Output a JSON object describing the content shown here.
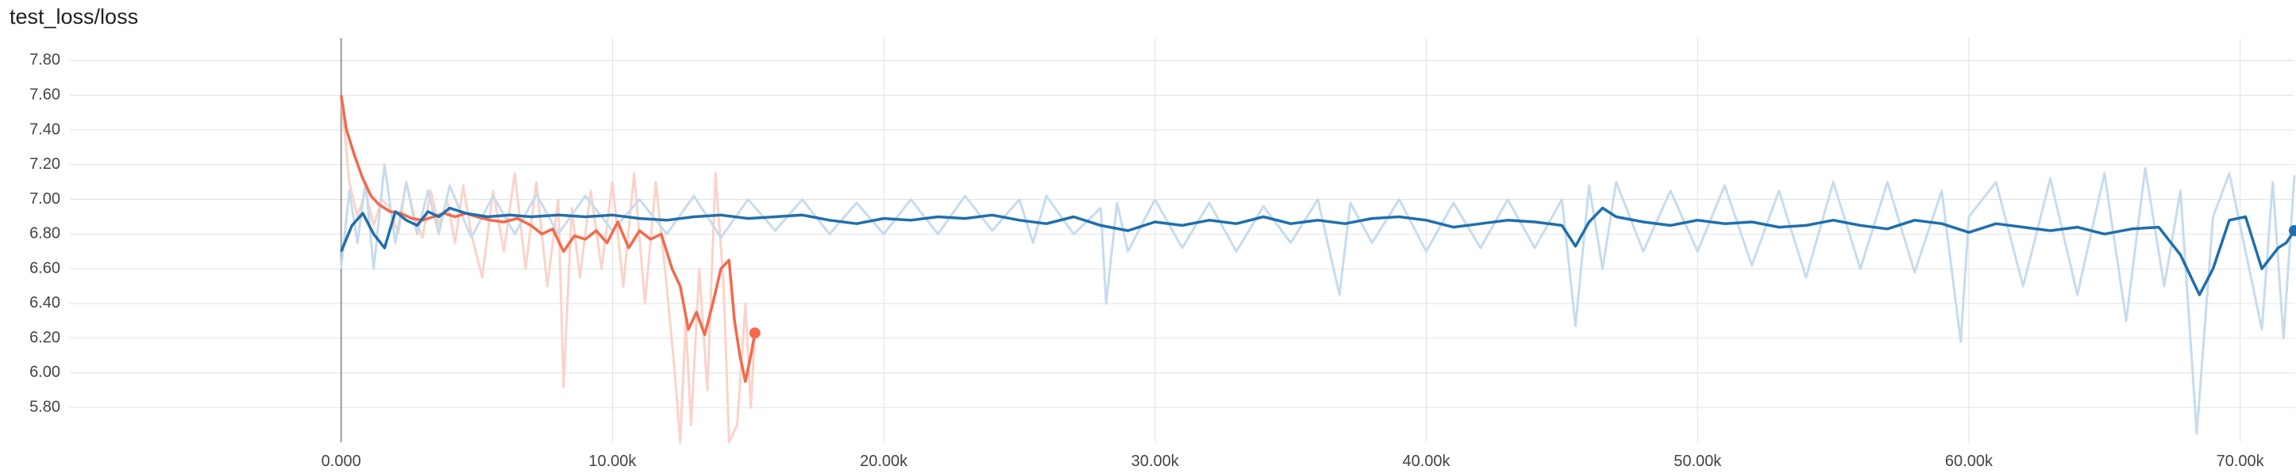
{
  "title": "test_loss/loss",
  "colors": {
    "run_orange": "#f4694b",
    "run_orange_raw": "#fbd3c9",
    "run_blue": "#1f6fad",
    "run_blue_raw": "#c6dcee",
    "grid": "#e2e2e2",
    "zero_line": "#9a9a9a"
  },
  "chart_data": {
    "type": "line",
    "title": "test_loss/loss",
    "xlabel": "",
    "ylabel": "",
    "xlim": [
      -10000,
      72000
    ],
    "ylim": [
      5.6,
      7.93
    ],
    "x_ticks": [
      {
        "value": 0,
        "label": "0.000"
      },
      {
        "value": 10000,
        "label": "10.00k"
      },
      {
        "value": 20000,
        "label": "20.00k"
      },
      {
        "value": 30000,
        "label": "30.00k"
      },
      {
        "value": 40000,
        "label": "40.00k"
      },
      {
        "value": 50000,
        "label": "50.00k"
      },
      {
        "value": 60000,
        "label": "60.00k"
      },
      {
        "value": 70000,
        "label": "70.00k"
      }
    ],
    "y_ticks": [
      {
        "value": 5.8,
        "label": "5.80"
      },
      {
        "value": 6.0,
        "label": "6.00"
      },
      {
        "value": 6.2,
        "label": "6.20"
      },
      {
        "value": 6.4,
        "label": "6.40"
      },
      {
        "value": 6.6,
        "label": "6.60"
      },
      {
        "value": 6.8,
        "label": "6.80"
      },
      {
        "value": 7.0,
        "label": "7.00"
      },
      {
        "value": 7.2,
        "label": "7.20"
      },
      {
        "value": 7.4,
        "label": "7.40"
      },
      {
        "value": 7.6,
        "label": "7.60"
      },
      {
        "value": 7.8,
        "label": "7.80"
      }
    ],
    "grid": true,
    "series": [
      {
        "color_key": "run_orange",
        "smoothed": [
          [
            0,
            7.6
          ],
          [
            200,
            7.4
          ],
          [
            500,
            7.25
          ],
          [
            800,
            7.12
          ],
          [
            1100,
            7.02
          ],
          [
            1400,
            6.97
          ],
          [
            1800,
            6.93
          ],
          [
            2200,
            6.92
          ],
          [
            2600,
            6.89
          ],
          [
            3000,
            6.88
          ],
          [
            3400,
            6.9
          ],
          [
            3800,
            6.92
          ],
          [
            4200,
            6.9
          ],
          [
            4600,
            6.92
          ],
          [
            5000,
            6.9
          ],
          [
            5500,
            6.88
          ],
          [
            6000,
            6.87
          ],
          [
            6500,
            6.89
          ],
          [
            7000,
            6.85
          ],
          [
            7400,
            6.8
          ],
          [
            7800,
            6.83
          ],
          [
            8200,
            6.7
          ],
          [
            8600,
            6.79
          ],
          [
            9000,
            6.77
          ],
          [
            9400,
            6.82
          ],
          [
            9800,
            6.75
          ],
          [
            10200,
            6.87
          ],
          [
            10600,
            6.72
          ],
          [
            11000,
            6.82
          ],
          [
            11400,
            6.77
          ],
          [
            11800,
            6.8
          ],
          [
            12200,
            6.6
          ],
          [
            12500,
            6.5
          ],
          [
            12800,
            6.25
          ],
          [
            13100,
            6.35
          ],
          [
            13400,
            6.22
          ],
          [
            13700,
            6.4
          ],
          [
            14000,
            6.6
          ],
          [
            14300,
            6.65
          ],
          [
            14500,
            6.3
          ],
          [
            14700,
            6.1
          ],
          [
            14900,
            5.95
          ],
          [
            15100,
            6.1
          ],
          [
            15250,
            6.23
          ]
        ],
        "raw": [
          [
            0,
            7.6
          ],
          [
            300,
            7.1
          ],
          [
            600,
            6.9
          ],
          [
            900,
            7.05
          ],
          [
            1200,
            6.85
          ],
          [
            1500,
            7.0
          ],
          [
            1800,
            6.95
          ],
          [
            2100,
            6.8
          ],
          [
            2400,
            7.1
          ],
          [
            2700,
            6.9
          ],
          [
            3000,
            6.78
          ],
          [
            3300,
            7.05
          ],
          [
            3600,
            6.85
          ],
          [
            3900,
            7.0
          ],
          [
            4200,
            6.75
          ],
          [
            4500,
            7.08
          ],
          [
            4800,
            6.8
          ],
          [
            5200,
            6.55
          ],
          [
            5600,
            7.05
          ],
          [
            6000,
            6.7
          ],
          [
            6400,
            7.15
          ],
          [
            6800,
            6.6
          ],
          [
            7200,
            7.1
          ],
          [
            7600,
            6.5
          ],
          [
            8000,
            7.0
          ],
          [
            8200,
            5.92
          ],
          [
            8500,
            6.95
          ],
          [
            8800,
            6.55
          ],
          [
            9200,
            7.05
          ],
          [
            9600,
            6.6
          ],
          [
            10000,
            7.1
          ],
          [
            10400,
            6.5
          ],
          [
            10800,
            7.15
          ],
          [
            11200,
            6.4
          ],
          [
            11600,
            7.1
          ],
          [
            12000,
            6.5
          ],
          [
            12300,
            6.0
          ],
          [
            12500,
            5.6
          ],
          [
            12700,
            6.3
          ],
          [
            12900,
            5.7
          ],
          [
            13200,
            6.6
          ],
          [
            13500,
            5.9
          ],
          [
            13800,
            7.15
          ],
          [
            14100,
            6.5
          ],
          [
            14300,
            5.6
          ],
          [
            14600,
            5.7
          ],
          [
            14900,
            6.4
          ],
          [
            15100,
            5.8
          ],
          [
            15250,
            6.23
          ]
        ]
      },
      {
        "color_key": "run_blue",
        "smoothed": [
          [
            0,
            6.7
          ],
          [
            400,
            6.85
          ],
          [
            800,
            6.92
          ],
          [
            1200,
            6.8
          ],
          [
            1600,
            6.72
          ],
          [
            2000,
            6.93
          ],
          [
            2400,
            6.88
          ],
          [
            2800,
            6.85
          ],
          [
            3200,
            6.93
          ],
          [
            3600,
            6.9
          ],
          [
            4000,
            6.95
          ],
          [
            4600,
            6.92
          ],
          [
            5400,
            6.9
          ],
          [
            6200,
            6.91
          ],
          [
            7000,
            6.9
          ],
          [
            8000,
            6.91
          ],
          [
            9000,
            6.9
          ],
          [
            10000,
            6.91
          ],
          [
            11000,
            6.89
          ],
          [
            12000,
            6.88
          ],
          [
            13000,
            6.9
          ],
          [
            14000,
            6.91
          ],
          [
            15000,
            6.89
          ],
          [
            16000,
            6.9
          ],
          [
            17000,
            6.91
          ],
          [
            18000,
            6.88
          ],
          [
            19000,
            6.86
          ],
          [
            20000,
            6.89
          ],
          [
            21000,
            6.88
          ],
          [
            22000,
            6.9
          ],
          [
            23000,
            6.89
          ],
          [
            24000,
            6.91
          ],
          [
            25000,
            6.88
          ],
          [
            26000,
            6.86
          ],
          [
            27000,
            6.9
          ],
          [
            28000,
            6.85
          ],
          [
            29000,
            6.82
          ],
          [
            30000,
            6.87
          ],
          [
            31000,
            6.85
          ],
          [
            32000,
            6.88
          ],
          [
            33000,
            6.86
          ],
          [
            34000,
            6.9
          ],
          [
            35000,
            6.86
          ],
          [
            36000,
            6.88
          ],
          [
            37000,
            6.86
          ],
          [
            38000,
            6.89
          ],
          [
            39000,
            6.9
          ],
          [
            40000,
            6.88
          ],
          [
            41000,
            6.84
          ],
          [
            42000,
            6.86
          ],
          [
            43000,
            6.88
          ],
          [
            44000,
            6.87
          ],
          [
            45000,
            6.85
          ],
          [
            45500,
            6.73
          ],
          [
            46000,
            6.87
          ],
          [
            46500,
            6.95
          ],
          [
            47000,
            6.9
          ],
          [
            48000,
            6.87
          ],
          [
            49000,
            6.85
          ],
          [
            50000,
            6.88
          ],
          [
            51000,
            6.86
          ],
          [
            52000,
            6.87
          ],
          [
            53000,
            6.84
          ],
          [
            54000,
            6.85
          ],
          [
            55000,
            6.88
          ],
          [
            56000,
            6.85
          ],
          [
            57000,
            6.83
          ],
          [
            58000,
            6.88
          ],
          [
            59000,
            6.86
          ],
          [
            60000,
            6.81
          ],
          [
            61000,
            6.86
          ],
          [
            62000,
            6.84
          ],
          [
            63000,
            6.82
          ],
          [
            64000,
            6.84
          ],
          [
            65000,
            6.8
          ],
          [
            66000,
            6.83
          ],
          [
            67000,
            6.84
          ],
          [
            67800,
            6.68
          ],
          [
            68500,
            6.45
          ],
          [
            69000,
            6.6
          ],
          [
            69600,
            6.88
          ],
          [
            70200,
            6.9
          ],
          [
            70800,
            6.6
          ],
          [
            71400,
            6.72
          ],
          [
            71700,
            6.75
          ],
          [
            72000,
            6.82
          ]
        ],
        "raw": [
          [
            0,
            6.6
          ],
          [
            300,
            7.05
          ],
          [
            600,
            6.75
          ],
          [
            900,
            7.1
          ],
          [
            1200,
            6.6
          ],
          [
            1600,
            7.2
          ],
          [
            2000,
            6.75
          ],
          [
            2400,
            7.1
          ],
          [
            2800,
            6.8
          ],
          [
            3200,
            7.05
          ],
          [
            3600,
            6.8
          ],
          [
            4000,
            7.08
          ],
          [
            4800,
            6.78
          ],
          [
            5600,
            7.02
          ],
          [
            6400,
            6.8
          ],
          [
            7200,
            7.03
          ],
          [
            8000,
            6.8
          ],
          [
            9000,
            7.02
          ],
          [
            10000,
            6.82
          ],
          [
            11000,
            7.0
          ],
          [
            12000,
            6.8
          ],
          [
            13000,
            7.02
          ],
          [
            14000,
            6.78
          ],
          [
            15000,
            7.0
          ],
          [
            16000,
            6.82
          ],
          [
            17000,
            7.0
          ],
          [
            18000,
            6.8
          ],
          [
            19000,
            6.98
          ],
          [
            20000,
            6.8
          ],
          [
            21000,
            7.0
          ],
          [
            22000,
            6.8
          ],
          [
            23000,
            7.02
          ],
          [
            24000,
            6.82
          ],
          [
            25000,
            7.0
          ],
          [
            25500,
            6.75
          ],
          [
            26000,
            7.02
          ],
          [
            27000,
            6.8
          ],
          [
            28000,
            6.95
          ],
          [
            28200,
            6.4
          ],
          [
            28600,
            6.98
          ],
          [
            29000,
            6.7
          ],
          [
            30000,
            7.0
          ],
          [
            31000,
            6.72
          ],
          [
            32000,
            6.98
          ],
          [
            33000,
            6.7
          ],
          [
            34000,
            6.96
          ],
          [
            35000,
            6.75
          ],
          [
            36000,
            7.0
          ],
          [
            36800,
            6.45
          ],
          [
            37200,
            6.98
          ],
          [
            38000,
            6.75
          ],
          [
            39000,
            7.0
          ],
          [
            40000,
            6.7
          ],
          [
            41000,
            6.98
          ],
          [
            42000,
            6.72
          ],
          [
            43000,
            7.0
          ],
          [
            44000,
            6.72
          ],
          [
            45000,
            7.0
          ],
          [
            45500,
            6.27
          ],
          [
            46000,
            7.08
          ],
          [
            46500,
            6.6
          ],
          [
            47000,
            7.1
          ],
          [
            48000,
            6.7
          ],
          [
            49000,
            7.05
          ],
          [
            50000,
            6.7
          ],
          [
            51000,
            7.08
          ],
          [
            52000,
            6.62
          ],
          [
            53000,
            7.05
          ],
          [
            54000,
            6.55
          ],
          [
            55000,
            7.1
          ],
          [
            56000,
            6.6
          ],
          [
            57000,
            7.1
          ],
          [
            58000,
            6.58
          ],
          [
            59000,
            7.05
          ],
          [
            59700,
            6.18
          ],
          [
            60000,
            6.9
          ],
          [
            61000,
            7.1
          ],
          [
            62000,
            6.5
          ],
          [
            63000,
            7.12
          ],
          [
            64000,
            6.45
          ],
          [
            65000,
            7.15
          ],
          [
            65800,
            6.3
          ],
          [
            66500,
            7.18
          ],
          [
            67200,
            6.5
          ],
          [
            67800,
            7.05
          ],
          [
            68400,
            5.65
          ],
          [
            69000,
            6.9
          ],
          [
            69600,
            7.15
          ],
          [
            70200,
            6.7
          ],
          [
            70800,
            6.25
          ],
          [
            71200,
            7.1
          ],
          [
            71600,
            6.2
          ],
          [
            72000,
            7.14
          ]
        ]
      }
    ]
  }
}
